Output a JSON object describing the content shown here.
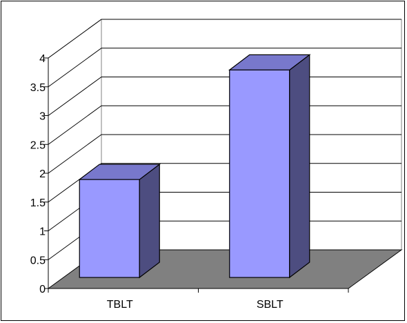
{
  "chart_data": {
    "type": "bar",
    "style": "3d-column",
    "title": "",
    "xlabel": "",
    "ylabel": "",
    "categories": [
      "TBLT",
      "SBLT"
    ],
    "values": [
      1.7,
      3.6
    ],
    "ylim": [
      0,
      4
    ],
    "yticks": [
      0,
      0.5,
      1,
      1.5,
      2,
      2.5,
      3,
      3.5,
      4
    ],
    "ytick_labels": [
      "0",
      "0.5",
      "1",
      "1.5",
      "2",
      "2.5",
      "3",
      "3.5",
      "4"
    ],
    "grid": true,
    "legend": "none",
    "colors": {
      "bar_front": "#9999ff",
      "bar_side": "#4d4d80",
      "bar_top": "#7878cc",
      "floor": "#808080",
      "gridline": "#000000"
    }
  }
}
